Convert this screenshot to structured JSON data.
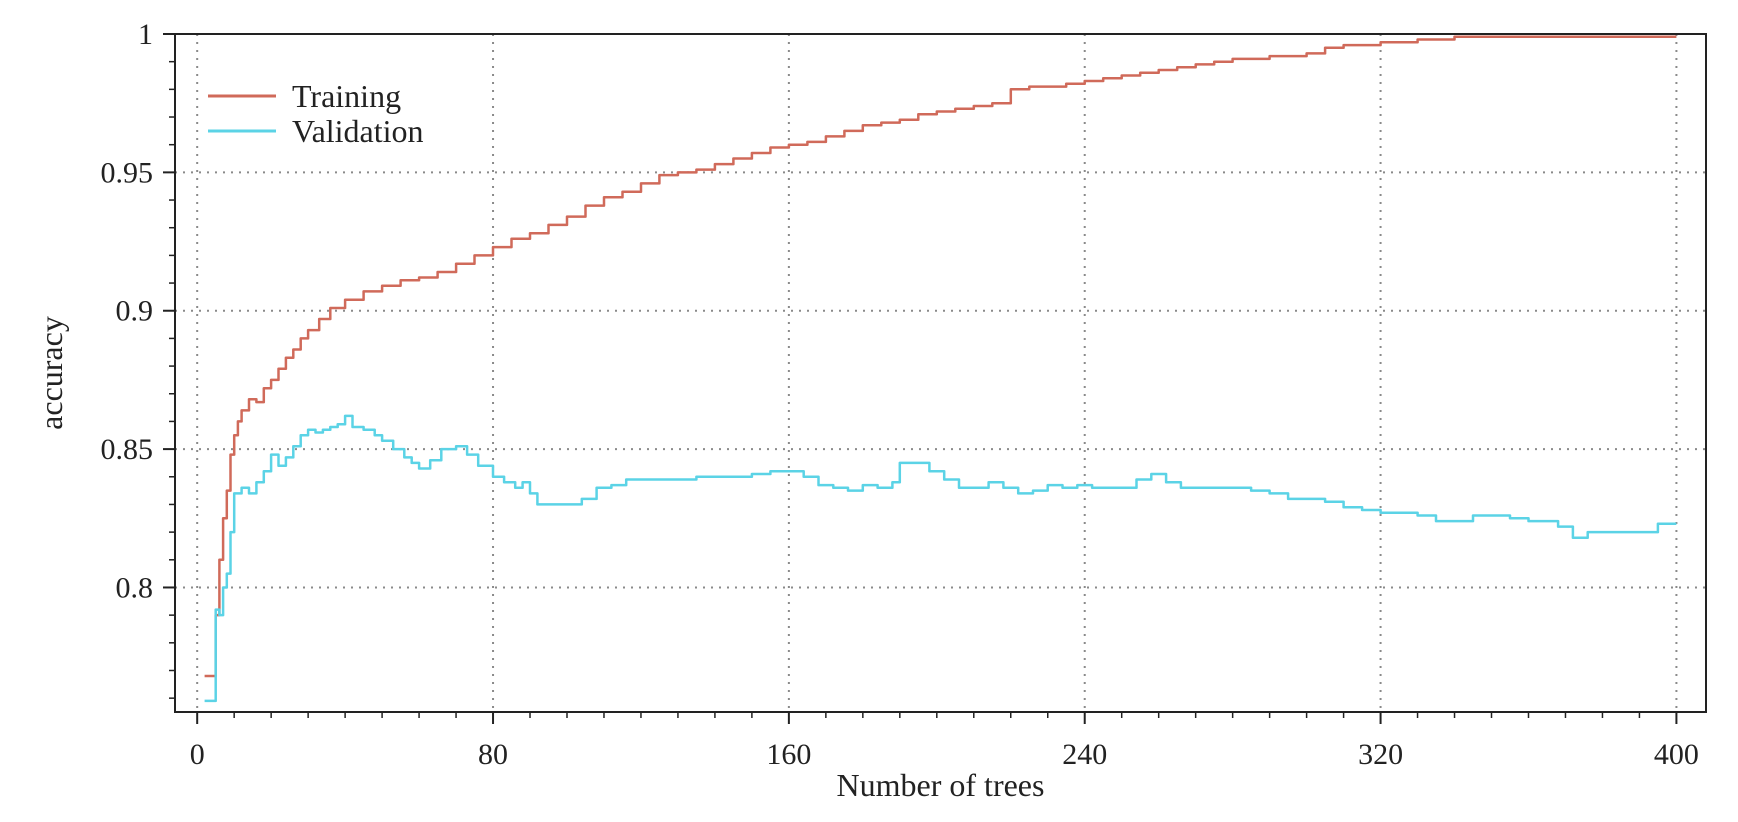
{
  "chart_data": {
    "type": "line",
    "title": "",
    "xlabel": "Number of trees",
    "ylabel": "accuracy",
    "xlim": [
      -6,
      408
    ],
    "ylim": [
      0.755,
      1.0
    ],
    "x_ticks": [
      0,
      80,
      160,
      240,
      320,
      400
    ],
    "x_tick_labels": [
      "0",
      "80",
      "160",
      "240",
      "320",
      "400"
    ],
    "y_ticks": [
      0.8,
      0.85,
      0.9,
      0.95,
      1.0
    ],
    "y_tick_labels": [
      "0.8",
      "0.85",
      "0.9",
      "0.95",
      "1"
    ],
    "grid": true,
    "legend": {
      "position": "top-left"
    },
    "series": [
      {
        "name": "Training",
        "color": "#d06a5a",
        "points": [
          [
            2,
            0.768
          ],
          [
            4,
            0.768
          ],
          [
            5,
            0.79
          ],
          [
            6,
            0.81
          ],
          [
            7,
            0.825
          ],
          [
            8,
            0.835
          ],
          [
            9,
            0.848
          ],
          [
            10,
            0.855
          ],
          [
            11,
            0.86
          ],
          [
            12,
            0.864
          ],
          [
            14,
            0.868
          ],
          [
            16,
            0.867
          ],
          [
            18,
            0.872
          ],
          [
            20,
            0.875
          ],
          [
            22,
            0.879
          ],
          [
            24,
            0.883
          ],
          [
            26,
            0.886
          ],
          [
            28,
            0.89
          ],
          [
            30,
            0.893
          ],
          [
            33,
            0.897
          ],
          [
            36,
            0.901
          ],
          [
            40,
            0.904
          ],
          [
            45,
            0.907
          ],
          [
            50,
            0.909
          ],
          [
            55,
            0.911
          ],
          [
            60,
            0.912
          ],
          [
            65,
            0.914
          ],
          [
            70,
            0.917
          ],
          [
            75,
            0.92
          ],
          [
            80,
            0.923
          ],
          [
            85,
            0.926
          ],
          [
            90,
            0.928
          ],
          [
            95,
            0.931
          ],
          [
            100,
            0.934
          ],
          [
            105,
            0.938
          ],
          [
            110,
            0.941
          ],
          [
            115,
            0.943
          ],
          [
            120,
            0.946
          ],
          [
            125,
            0.949
          ],
          [
            130,
            0.95
          ],
          [
            135,
            0.951
          ],
          [
            140,
            0.953
          ],
          [
            145,
            0.955
          ],
          [
            150,
            0.957
          ],
          [
            155,
            0.959
          ],
          [
            160,
            0.96
          ],
          [
            165,
            0.961
          ],
          [
            170,
            0.963
          ],
          [
            175,
            0.965
          ],
          [
            180,
            0.967
          ],
          [
            185,
            0.968
          ],
          [
            190,
            0.969
          ],
          [
            195,
            0.971
          ],
          [
            200,
            0.972
          ],
          [
            205,
            0.973
          ],
          [
            210,
            0.974
          ],
          [
            215,
            0.975
          ],
          [
            220,
            0.98
          ],
          [
            225,
            0.981
          ],
          [
            230,
            0.981
          ],
          [
            235,
            0.982
          ],
          [
            240,
            0.983
          ],
          [
            245,
            0.984
          ],
          [
            250,
            0.985
          ],
          [
            255,
            0.986
          ],
          [
            260,
            0.987
          ],
          [
            265,
            0.988
          ],
          [
            270,
            0.989
          ],
          [
            275,
            0.99
          ],
          [
            280,
            0.991
          ],
          [
            285,
            0.991
          ],
          [
            290,
            0.992
          ],
          [
            295,
            0.992
          ],
          [
            300,
            0.993
          ],
          [
            305,
            0.995
          ],
          [
            310,
            0.996
          ],
          [
            315,
            0.996
          ],
          [
            320,
            0.997
          ],
          [
            325,
            0.997
          ],
          [
            330,
            0.998
          ],
          [
            335,
            0.998
          ],
          [
            340,
            0.999
          ],
          [
            350,
            0.999
          ],
          [
            360,
            0.999
          ],
          [
            370,
            0.999
          ],
          [
            380,
            0.999
          ],
          [
            390,
            0.999
          ],
          [
            400,
            0.999
          ]
        ]
      },
      {
        "name": "Validation",
        "color": "#5bd3e6",
        "points": [
          [
            2,
            0.759
          ],
          [
            4,
            0.759
          ],
          [
            5,
            0.792
          ],
          [
            6,
            0.79
          ],
          [
            7,
            0.8
          ],
          [
            8,
            0.805
          ],
          [
            9,
            0.82
          ],
          [
            10,
            0.834
          ],
          [
            12,
            0.836
          ],
          [
            14,
            0.834
          ],
          [
            16,
            0.838
          ],
          [
            18,
            0.842
          ],
          [
            20,
            0.848
          ],
          [
            22,
            0.844
          ],
          [
            24,
            0.847
          ],
          [
            26,
            0.851
          ],
          [
            28,
            0.855
          ],
          [
            30,
            0.857
          ],
          [
            32,
            0.856
          ],
          [
            34,
            0.857
          ],
          [
            36,
            0.858
          ],
          [
            38,
            0.859
          ],
          [
            40,
            0.862
          ],
          [
            42,
            0.858
          ],
          [
            45,
            0.857
          ],
          [
            48,
            0.855
          ],
          [
            50,
            0.853
          ],
          [
            53,
            0.85
          ],
          [
            56,
            0.847
          ],
          [
            58,
            0.845
          ],
          [
            60,
            0.843
          ],
          [
            63,
            0.846
          ],
          [
            66,
            0.85
          ],
          [
            70,
            0.851
          ],
          [
            73,
            0.848
          ],
          [
            76,
            0.844
          ],
          [
            80,
            0.84
          ],
          [
            83,
            0.838
          ],
          [
            86,
            0.836
          ],
          [
            88,
            0.838
          ],
          [
            90,
            0.834
          ],
          [
            92,
            0.83
          ],
          [
            96,
            0.83
          ],
          [
            100,
            0.83
          ],
          [
            104,
            0.832
          ],
          [
            108,
            0.836
          ],
          [
            112,
            0.837
          ],
          [
            116,
            0.839
          ],
          [
            120,
            0.839
          ],
          [
            125,
            0.839
          ],
          [
            130,
            0.839
          ],
          [
            135,
            0.84
          ],
          [
            140,
            0.84
          ],
          [
            145,
            0.84
          ],
          [
            150,
            0.841
          ],
          [
            155,
            0.842
          ],
          [
            160,
            0.842
          ],
          [
            164,
            0.84
          ],
          [
            168,
            0.837
          ],
          [
            172,
            0.836
          ],
          [
            176,
            0.835
          ],
          [
            180,
            0.837
          ],
          [
            184,
            0.836
          ],
          [
            188,
            0.838
          ],
          [
            190,
            0.845
          ],
          [
            194,
            0.845
          ],
          [
            198,
            0.842
          ],
          [
            202,
            0.839
          ],
          [
            206,
            0.836
          ],
          [
            210,
            0.836
          ],
          [
            214,
            0.838
          ],
          [
            218,
            0.836
          ],
          [
            222,
            0.834
          ],
          [
            226,
            0.835
          ],
          [
            230,
            0.837
          ],
          [
            234,
            0.836
          ],
          [
            238,
            0.837
          ],
          [
            242,
            0.836
          ],
          [
            246,
            0.836
          ],
          [
            250,
            0.836
          ],
          [
            254,
            0.839
          ],
          [
            258,
            0.841
          ],
          [
            262,
            0.838
          ],
          [
            266,
            0.836
          ],
          [
            270,
            0.836
          ],
          [
            275,
            0.836
          ],
          [
            280,
            0.836
          ],
          [
            285,
            0.835
          ],
          [
            290,
            0.834
          ],
          [
            295,
            0.832
          ],
          [
            300,
            0.832
          ],
          [
            305,
            0.831
          ],
          [
            310,
            0.829
          ],
          [
            315,
            0.828
          ],
          [
            320,
            0.827
          ],
          [
            325,
            0.827
          ],
          [
            330,
            0.826
          ],
          [
            335,
            0.824
          ],
          [
            340,
            0.824
          ],
          [
            345,
            0.826
          ],
          [
            350,
            0.826
          ],
          [
            355,
            0.825
          ],
          [
            360,
            0.824
          ],
          [
            365,
            0.824
          ],
          [
            368,
            0.822
          ],
          [
            372,
            0.818
          ],
          [
            376,
            0.82
          ],
          [
            380,
            0.82
          ],
          [
            385,
            0.82
          ],
          [
            390,
            0.82
          ],
          [
            395,
            0.823
          ],
          [
            400,
            0.823
          ]
        ]
      }
    ]
  }
}
